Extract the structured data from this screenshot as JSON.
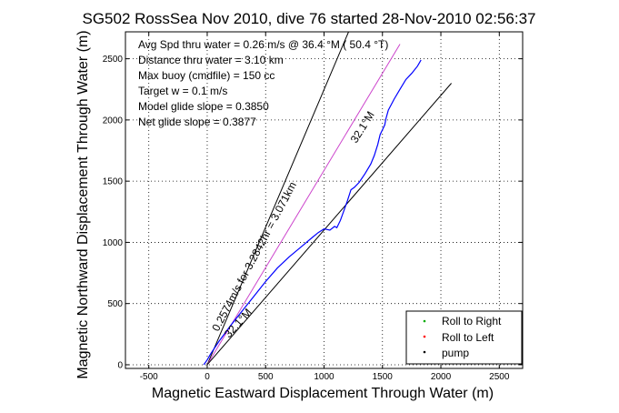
{
  "chart_data": {
    "type": "line",
    "title": "SG502 RossSea Nov 2010, dive 76 started 28-Nov-2010 02:56:37",
    "xlabel": "Magnetic Eastward Displacement Through Water (m)",
    "ylabel": "Magnetic Northward Displacement Through Water (m)",
    "xlim": [
      -700,
      2700
    ],
    "ylim": [
      -30,
      2720
    ],
    "xticks": [
      -500,
      0,
      500,
      1000,
      1500,
      2000,
      2500
    ],
    "yticks": [
      0,
      500,
      1000,
      1500,
      2000,
      2500
    ],
    "grid": true,
    "annotations": [
      "Avg Spd thru water =  0.26 m/s @  36.4  °M ( 50.4 °T)",
      "Distance thru water =  3.10 km",
      "Max buoy (cmdfile) = 150 cc",
      "Target w = 0.1 m/s",
      "Model glide slope = 0.3850",
      "Net glide slope = 0.3877"
    ],
    "line_labels": {
      "heading_top": "32.1°M",
      "heading_bottom": "32.1°M",
      "speed_label": "0.2574m/s for 3.2842hr = 3.071km"
    },
    "reference_lines": [
      {
        "name": "upper-bound",
        "x": [
          0,
          1210
        ],
        "y": [
          0,
          2720
        ]
      },
      {
        "name": "heading-line",
        "x": [
          0,
          1650
        ],
        "y": [
          0,
          2620
        ],
        "color": "#cc44cc"
      },
      {
        "name": "lower-bound",
        "x": [
          0,
          2090
        ],
        "y": [
          0,
          2300
        ]
      }
    ],
    "series": [
      {
        "name": "track",
        "color": "#0000ff",
        "x": [
          -30,
          0,
          30,
          100,
          200,
          300,
          400,
          500,
          600,
          700,
          800,
          900,
          950,
          1000,
          1050,
          1090,
          1110,
          1140,
          1170,
          1200,
          1230,
          1260,
          1300,
          1350,
          1400,
          1430,
          1460,
          1480,
          1500,
          1520,
          1530,
          1550,
          1600,
          1650,
          1700,
          1750,
          1800,
          1830
        ],
        "y": [
          0,
          40,
          90,
          190,
          320,
          440,
          560,
          680,
          790,
          880,
          960,
          1040,
          1080,
          1110,
          1100,
          1130,
          1120,
          1180,
          1260,
          1340,
          1430,
          1450,
          1490,
          1560,
          1640,
          1710,
          1800,
          1880,
          1920,
          1960,
          2010,
          2080,
          2170,
          2250,
          2330,
          2380,
          2440,
          2490
        ]
      }
    ],
    "legend": {
      "placement": "bottom-right",
      "entries": [
        {
          "label": "Roll to Right",
          "color": "#00aa00"
        },
        {
          "label": "Roll to Left",
          "color": "#ff0000"
        },
        {
          "label": "pump",
          "color": "#000000"
        }
      ]
    }
  }
}
